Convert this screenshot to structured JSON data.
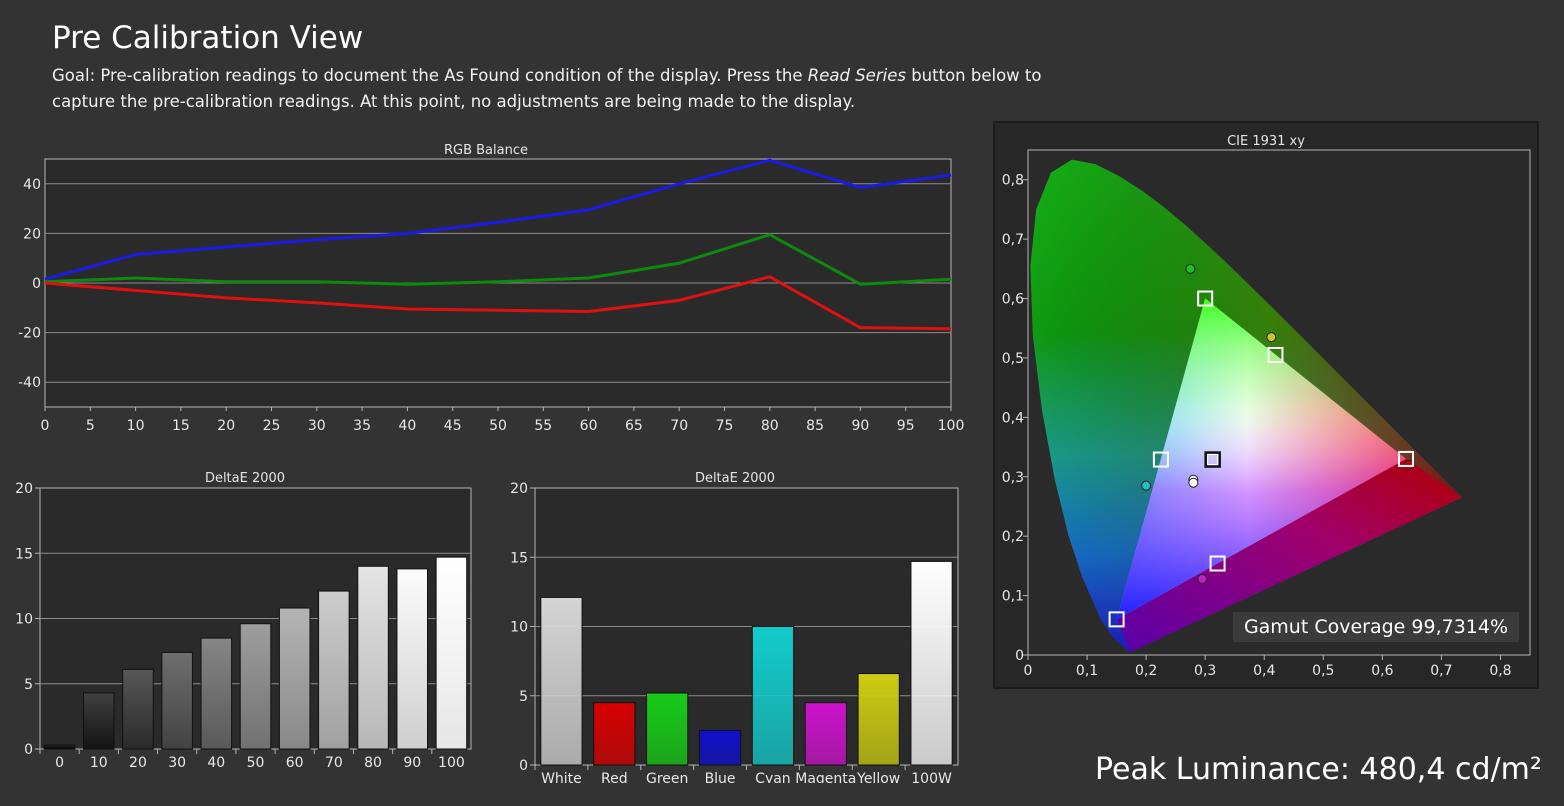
{
  "page": {
    "title": "Pre Calibration View",
    "goal_prefix": "Goal: Pre-calibration readings to document the As Found condition of the display. Press the ",
    "goal_emphasis": "Read Series",
    "goal_suffix": " button below to capture the pre-calibration readings. At this point, no adjustments are being made to the display.",
    "gamut_coverage": "Gamut Coverage 99,7314%",
    "peak_luminance": "Peak Luminance: 480,4 cd/m²"
  },
  "colors": {
    "background": "#333333",
    "plot_bg": "#2a2a2a",
    "grid": "#8c8c8c",
    "red": "#e01010",
    "green": "#0d8a0d",
    "blue": "#1a1ae6"
  },
  "chart_data": [
    {
      "type": "line",
      "title": "RGB Balance",
      "x": [
        0,
        10,
        20,
        30,
        40,
        50,
        60,
        70,
        80,
        90,
        100
      ],
      "xticks": [
        "0",
        "5",
        "10",
        "15",
        "20",
        "25",
        "30",
        "35",
        "40",
        "45",
        "50",
        "55",
        "60",
        "65",
        "70",
        "75",
        "80",
        "85",
        "90",
        "95",
        "100"
      ],
      "yticks": [
        "40",
        "20",
        "0",
        "-20",
        "-40"
      ],
      "xlim": [
        0,
        100
      ],
      "ylim": [
        -50,
        50
      ],
      "grid": true,
      "series": [
        {
          "color": "#1a1ae6",
          "values": [
            1.5,
            11.5,
            14.5,
            17.5,
            20,
            24.5,
            29.5,
            40,
            49.5,
            38.5,
            43.5
          ]
        },
        {
          "color": "#0d8a0d",
          "values": [
            0.5,
            2,
            0.5,
            0.5,
            -0.5,
            0.5,
            2,
            8,
            19.5,
            -0.5,
            1.5
          ]
        },
        {
          "color": "#e01010",
          "values": [
            0,
            -3,
            -6,
            -8,
            -10.5,
            -11,
            -11.5,
            -7,
            2.5,
            -18,
            -18.5
          ]
        }
      ]
    },
    {
      "type": "bar",
      "title": "DeltaE 2000",
      "categories": [
        "0",
        "10",
        "20",
        "30",
        "40",
        "50",
        "60",
        "70",
        "80",
        "90",
        "100"
      ],
      "values": [
        0.3,
        4.3,
        6.1,
        7.4,
        8.5,
        9.6,
        10.8,
        12.1,
        14,
        13.8,
        14.7
      ],
      "ylim": [
        0,
        20
      ],
      "yticks": [
        "0",
        "5",
        "10",
        "15",
        "20"
      ],
      "grid": true
    },
    {
      "type": "bar",
      "title": "DeltaE 2000",
      "categories": [
        "White",
        "Red",
        "Green",
        "Blue",
        "Cyan",
        "Magenta",
        "Yellow",
        "100W"
      ],
      "values": [
        12.1,
        4.5,
        5.2,
        2.5,
        10,
        4.5,
        6.6,
        14.7
      ],
      "bar_colors": [
        "#d5d5d5",
        "#d90000",
        "#18cc18",
        "#1010cc",
        "#13cccc",
        "#cc12cc",
        "#cccc12",
        "#ffffff"
      ],
      "ylim": [
        0,
        20
      ],
      "yticks": [
        "0",
        "5",
        "10",
        "15",
        "20"
      ],
      "grid": true
    },
    {
      "type": "scatter",
      "title": "CIE 1931 xy",
      "xlim": [
        0,
        0.85
      ],
      "ylim": [
        0,
        0.85
      ],
      "xticks": [
        "0",
        "0,1",
        "0,2",
        "0,3",
        "0,4",
        "0,5",
        "0,6",
        "0,7",
        "0,8"
      ],
      "yticks": [
        "0",
        "0,1",
        "0,2",
        "0,3",
        "0,4",
        "0,5",
        "0,6",
        "0,7",
        "0,8"
      ],
      "targets": [
        {
          "x": 0.64,
          "y": 0.33
        },
        {
          "x": 0.3,
          "y": 0.6
        },
        {
          "x": 0.15,
          "y": 0.06
        },
        {
          "x": 0.225,
          "y": 0.329
        },
        {
          "x": 0.321,
          "y": 0.154
        },
        {
          "x": 0.419,
          "y": 0.505
        },
        {
          "x": 0.3127,
          "y": 0.329
        }
      ],
      "measured": [
        {
          "x": 0.645,
          "y": 0.32,
          "color": "#cc0000"
        },
        {
          "x": 0.275,
          "y": 0.65,
          "color": "#22bb22"
        },
        {
          "x": 0.2,
          "y": 0.285,
          "color": "#22c0c0"
        },
        {
          "x": 0.295,
          "y": 0.128,
          "color": "#c020c0"
        },
        {
          "x": 0.412,
          "y": 0.535,
          "color": "#c8c820"
        },
        {
          "x": 0.28,
          "y": 0.295,
          "color": "#ffffff"
        },
        {
          "x": 0.28,
          "y": 0.29,
          "color": "#ffffff"
        }
      ]
    }
  ]
}
